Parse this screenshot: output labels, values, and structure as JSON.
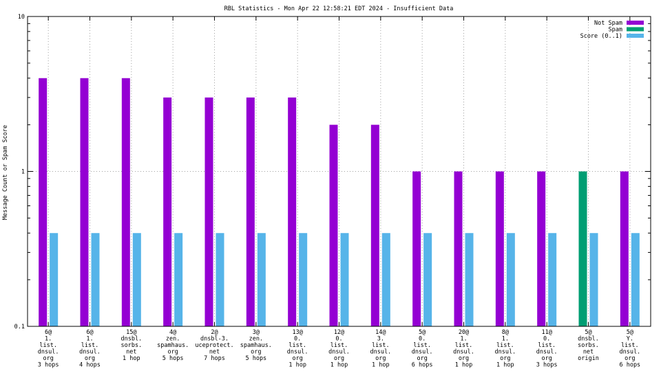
{
  "chart_data": {
    "type": "bar",
    "title": "RBL Statistics - Mon Apr 22 12:58:21 EDT 2024 - Insufficient Data",
    "xlabel": "",
    "ylabel": "Message Count or Spam Score",
    "yscale": "log",
    "ylim": [
      0.1,
      10
    ],
    "yticks": [
      "0.1",
      "1",
      "10"
    ],
    "grid": true,
    "legend_position": "top-right",
    "categories": [
      [
        "6@",
        "1.",
        "list.",
        "dnsul.",
        "org",
        "3 hops"
      ],
      [
        "6@",
        "1.",
        "list.",
        "dnsul.",
        "org",
        "4 hops"
      ],
      [
        "15@",
        "dnsbl.",
        "sorbs.",
        "net",
        "1 hop"
      ],
      [
        "4@",
        "zen.",
        "spamhaus.",
        "org",
        "5 hops"
      ],
      [
        "2@",
        "dnsbl-3.",
        "uceprotect.",
        "net",
        "7 hops"
      ],
      [
        "3@",
        "zen.",
        "spamhaus.",
        "org",
        "5 hops"
      ],
      [
        "13@",
        "0.",
        "list.",
        "dnsul.",
        "org",
        "1 hop"
      ],
      [
        "12@",
        "0.",
        "list.",
        "dnsul.",
        "org",
        "1 hop"
      ],
      [
        "14@",
        "3.",
        "list.",
        "dnsul.",
        "org",
        "1 hop"
      ],
      [
        "5@",
        "0.",
        "list.",
        "dnsul.",
        "org",
        "6 hops"
      ],
      [
        "20@",
        "1.",
        "list.",
        "dnsul.",
        "org",
        "1 hop"
      ],
      [
        "8@",
        "1.",
        "list.",
        "dnsul.",
        "org",
        "1 hop"
      ],
      [
        "11@",
        "0.",
        "list.",
        "dnsul.",
        "org",
        "3 hops"
      ],
      [
        "5@",
        "dnsbl.",
        "sorbs.",
        "net",
        "origin"
      ],
      [
        "5@",
        "Y.",
        "list.",
        "dnsul.",
        "org",
        "6 hops"
      ]
    ],
    "series": [
      {
        "name": "Not Spam",
        "color": "#9400d3",
        "values": [
          4,
          4,
          4,
          3,
          3,
          3,
          3,
          2,
          2,
          1,
          1,
          1,
          1,
          null,
          1
        ]
      },
      {
        "name": "Spam",
        "color": "#009e73",
        "values": [
          null,
          null,
          null,
          null,
          null,
          null,
          null,
          null,
          null,
          null,
          null,
          null,
          null,
          1,
          null
        ]
      },
      {
        "name": "Score (0..1)",
        "color": "#56b4e9",
        "values": [
          0.4,
          0.4,
          0.4,
          0.4,
          0.4,
          0.4,
          0.4,
          0.4,
          0.4,
          0.4,
          0.4,
          0.4,
          0.4,
          0.4,
          0.4
        ]
      }
    ]
  }
}
